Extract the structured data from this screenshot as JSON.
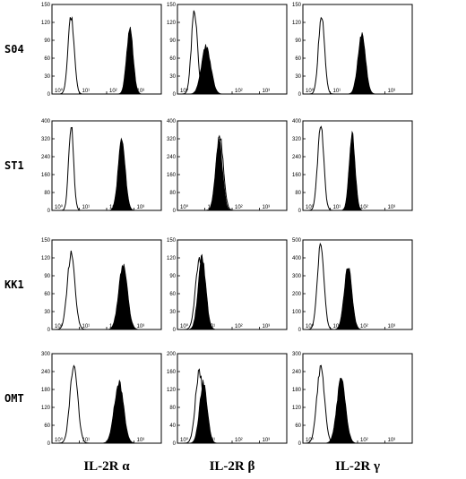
{
  "chart_data": {
    "type": "area",
    "rows": [
      "S04",
      "ST1",
      "KK1",
      "OMT"
    ],
    "columns": [
      "IL-2R α",
      "IL-2R β",
      "IL-2R γ"
    ],
    "x_scale": "log",
    "x_ticks": [
      "10⁰",
      "10¹",
      "10²",
      "10³"
    ],
    "grid": false,
    "panels": [
      {
        "row": "S04",
        "column": "IL-2R α",
        "ylim": [
          0,
          150
        ],
        "yticks": [
          0,
          30,
          60,
          90,
          120,
          150
        ],
        "control": {
          "center": 0.7,
          "width": 0.11,
          "peak": 132
        },
        "stained": {
          "center": 2.85,
          "width": 0.12,
          "peak": 112
        }
      },
      {
        "row": "S04",
        "column": "IL-2R β",
        "ylim": [
          0,
          150
        ],
        "yticks": [
          0,
          30,
          60,
          90,
          120,
          150
        ],
        "control": {
          "center": 0.62,
          "width": 0.11,
          "peak": 140
        },
        "stained": {
          "center": 1.05,
          "width": 0.17,
          "peak": 80
        }
      },
      {
        "row": "S04",
        "column": "IL-2R γ",
        "ylim": [
          0,
          150
        ],
        "yticks": [
          0,
          30,
          60,
          90,
          120,
          150
        ],
        "control": {
          "center": 0.68,
          "width": 0.11,
          "peak": 135
        },
        "stained": {
          "center": 2.15,
          "width": 0.14,
          "peak": 100
        }
      },
      {
        "row": "ST1",
        "column": "IL-2R α",
        "ylim": [
          0,
          400
        ],
        "yticks": [
          0,
          80,
          160,
          240,
          320,
          400
        ],
        "control": {
          "center": 0.7,
          "width": 0.09,
          "peak": 380
        },
        "stained": {
          "center": 2.55,
          "width": 0.13,
          "peak": 315
        }
      },
      {
        "row": "ST1",
        "column": "IL-2R β",
        "ylim": [
          0,
          400
        ],
        "yticks": [
          0,
          80,
          160,
          240,
          320,
          400
        ],
        "control": {
          "center": 1.55,
          "width": 0.13,
          "peak": 335
        },
        "stained": {
          "center": 1.52,
          "width": 0.13,
          "peak": 305
        }
      },
      {
        "row": "ST1",
        "column": "IL-2R γ",
        "ylim": [
          0,
          400
        ],
        "yticks": [
          0,
          80,
          160,
          240,
          320,
          400
        ],
        "control": {
          "center": 0.65,
          "width": 0.11,
          "peak": 390
        },
        "stained": {
          "center": 1.8,
          "width": 0.11,
          "peak": 340
        }
      },
      {
        "row": "KK1",
        "column": "IL-2R α",
        "ylim": [
          0,
          150
        ],
        "yticks": [
          0,
          30,
          60,
          90,
          120,
          150
        ],
        "control": {
          "center": 0.7,
          "width": 0.14,
          "peak": 125
        },
        "stained": {
          "center": 2.6,
          "width": 0.16,
          "peak": 110
        }
      },
      {
        "row": "KK1",
        "column": "IL-2R β",
        "ylim": [
          0,
          150
        ],
        "yticks": [
          0,
          30,
          60,
          90,
          120,
          150
        ],
        "control": {
          "center": 0.8,
          "width": 0.14,
          "peak": 118
        },
        "stained": {
          "center": 0.9,
          "width": 0.14,
          "peak": 120
        }
      },
      {
        "row": "KK1",
        "column": "IL-2R γ",
        "ylim": [
          0,
          500
        ],
        "yticks": [
          0,
          100,
          200,
          300,
          400,
          500
        ],
        "control": {
          "center": 0.65,
          "width": 0.12,
          "peak": 470
        },
        "stained": {
          "center": 1.65,
          "width": 0.14,
          "peak": 360
        }
      },
      {
        "row": "OMT",
        "column": "IL-2R α",
        "ylim": [
          0,
          300
        ],
        "yticks": [
          0,
          60,
          120,
          180,
          240,
          300
        ],
        "control": {
          "center": 0.8,
          "width": 0.14,
          "peak": 265
        },
        "stained": {
          "center": 2.45,
          "width": 0.17,
          "peak": 205
        }
      },
      {
        "row": "OMT",
        "column": "IL-2R β",
        "ylim": [
          0,
          200
        ],
        "yticks": [
          0,
          40,
          80,
          120,
          160,
          200
        ],
        "control": {
          "center": 0.8,
          "width": 0.14,
          "peak": 160
        },
        "stained": {
          "center": 0.95,
          "width": 0.14,
          "peak": 135
        }
      },
      {
        "row": "OMT",
        "column": "IL-2R γ",
        "ylim": [
          0,
          300
        ],
        "yticks": [
          0,
          60,
          120,
          180,
          240,
          300
        ],
        "control": {
          "center": 0.65,
          "width": 0.14,
          "peak": 255
        },
        "stained": {
          "center": 1.4,
          "width": 0.16,
          "peak": 215
        }
      }
    ]
  },
  "colors": {
    "stained_fill": "#000000",
    "control_stroke": "#000000",
    "frame": "#000000"
  }
}
